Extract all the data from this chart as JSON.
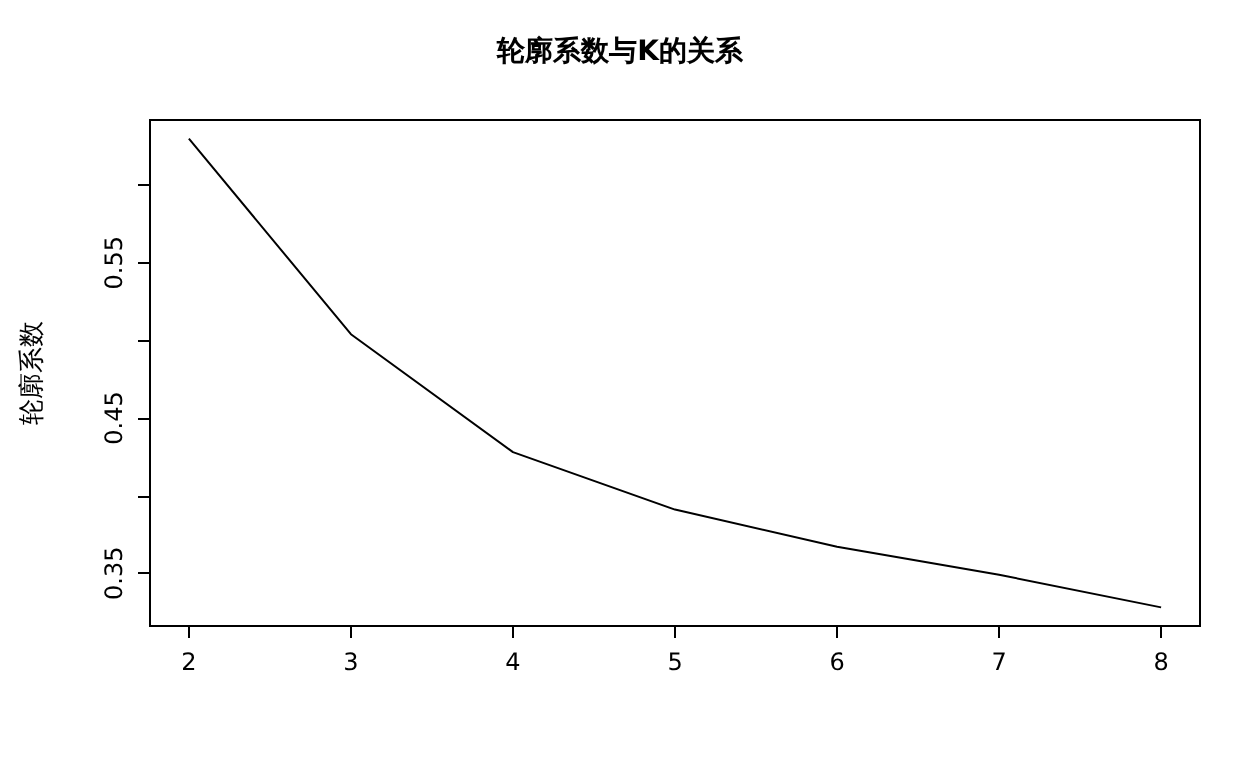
{
  "chart_data": {
    "type": "line",
    "title": "轮廓系数与K的关系",
    "ylabel": "轮廓系数",
    "x": [
      2,
      3,
      4,
      5,
      6,
      7,
      8
    ],
    "series": [
      {
        "color": "#000000",
        "values": [
          0.63,
          0.504,
          0.428,
          0.391,
          0.367,
          0.349,
          0.328
        ]
      }
    ],
    "xlim": [
      1.76,
      8.24
    ],
    "xticks": [
      2,
      3,
      4,
      5,
      6,
      7,
      8
    ],
    "ylim": [
      0.316,
      0.642
    ],
    "yticks": [
      0.35,
      {
        "value": 0.4,
        "label": null
      },
      0.45,
      {
        "value": 0.5,
        "label": null
      },
      0.55,
      {
        "value": 0.6,
        "label": null
      }
    ],
    "marker": "none",
    "line_style": "solid"
  }
}
